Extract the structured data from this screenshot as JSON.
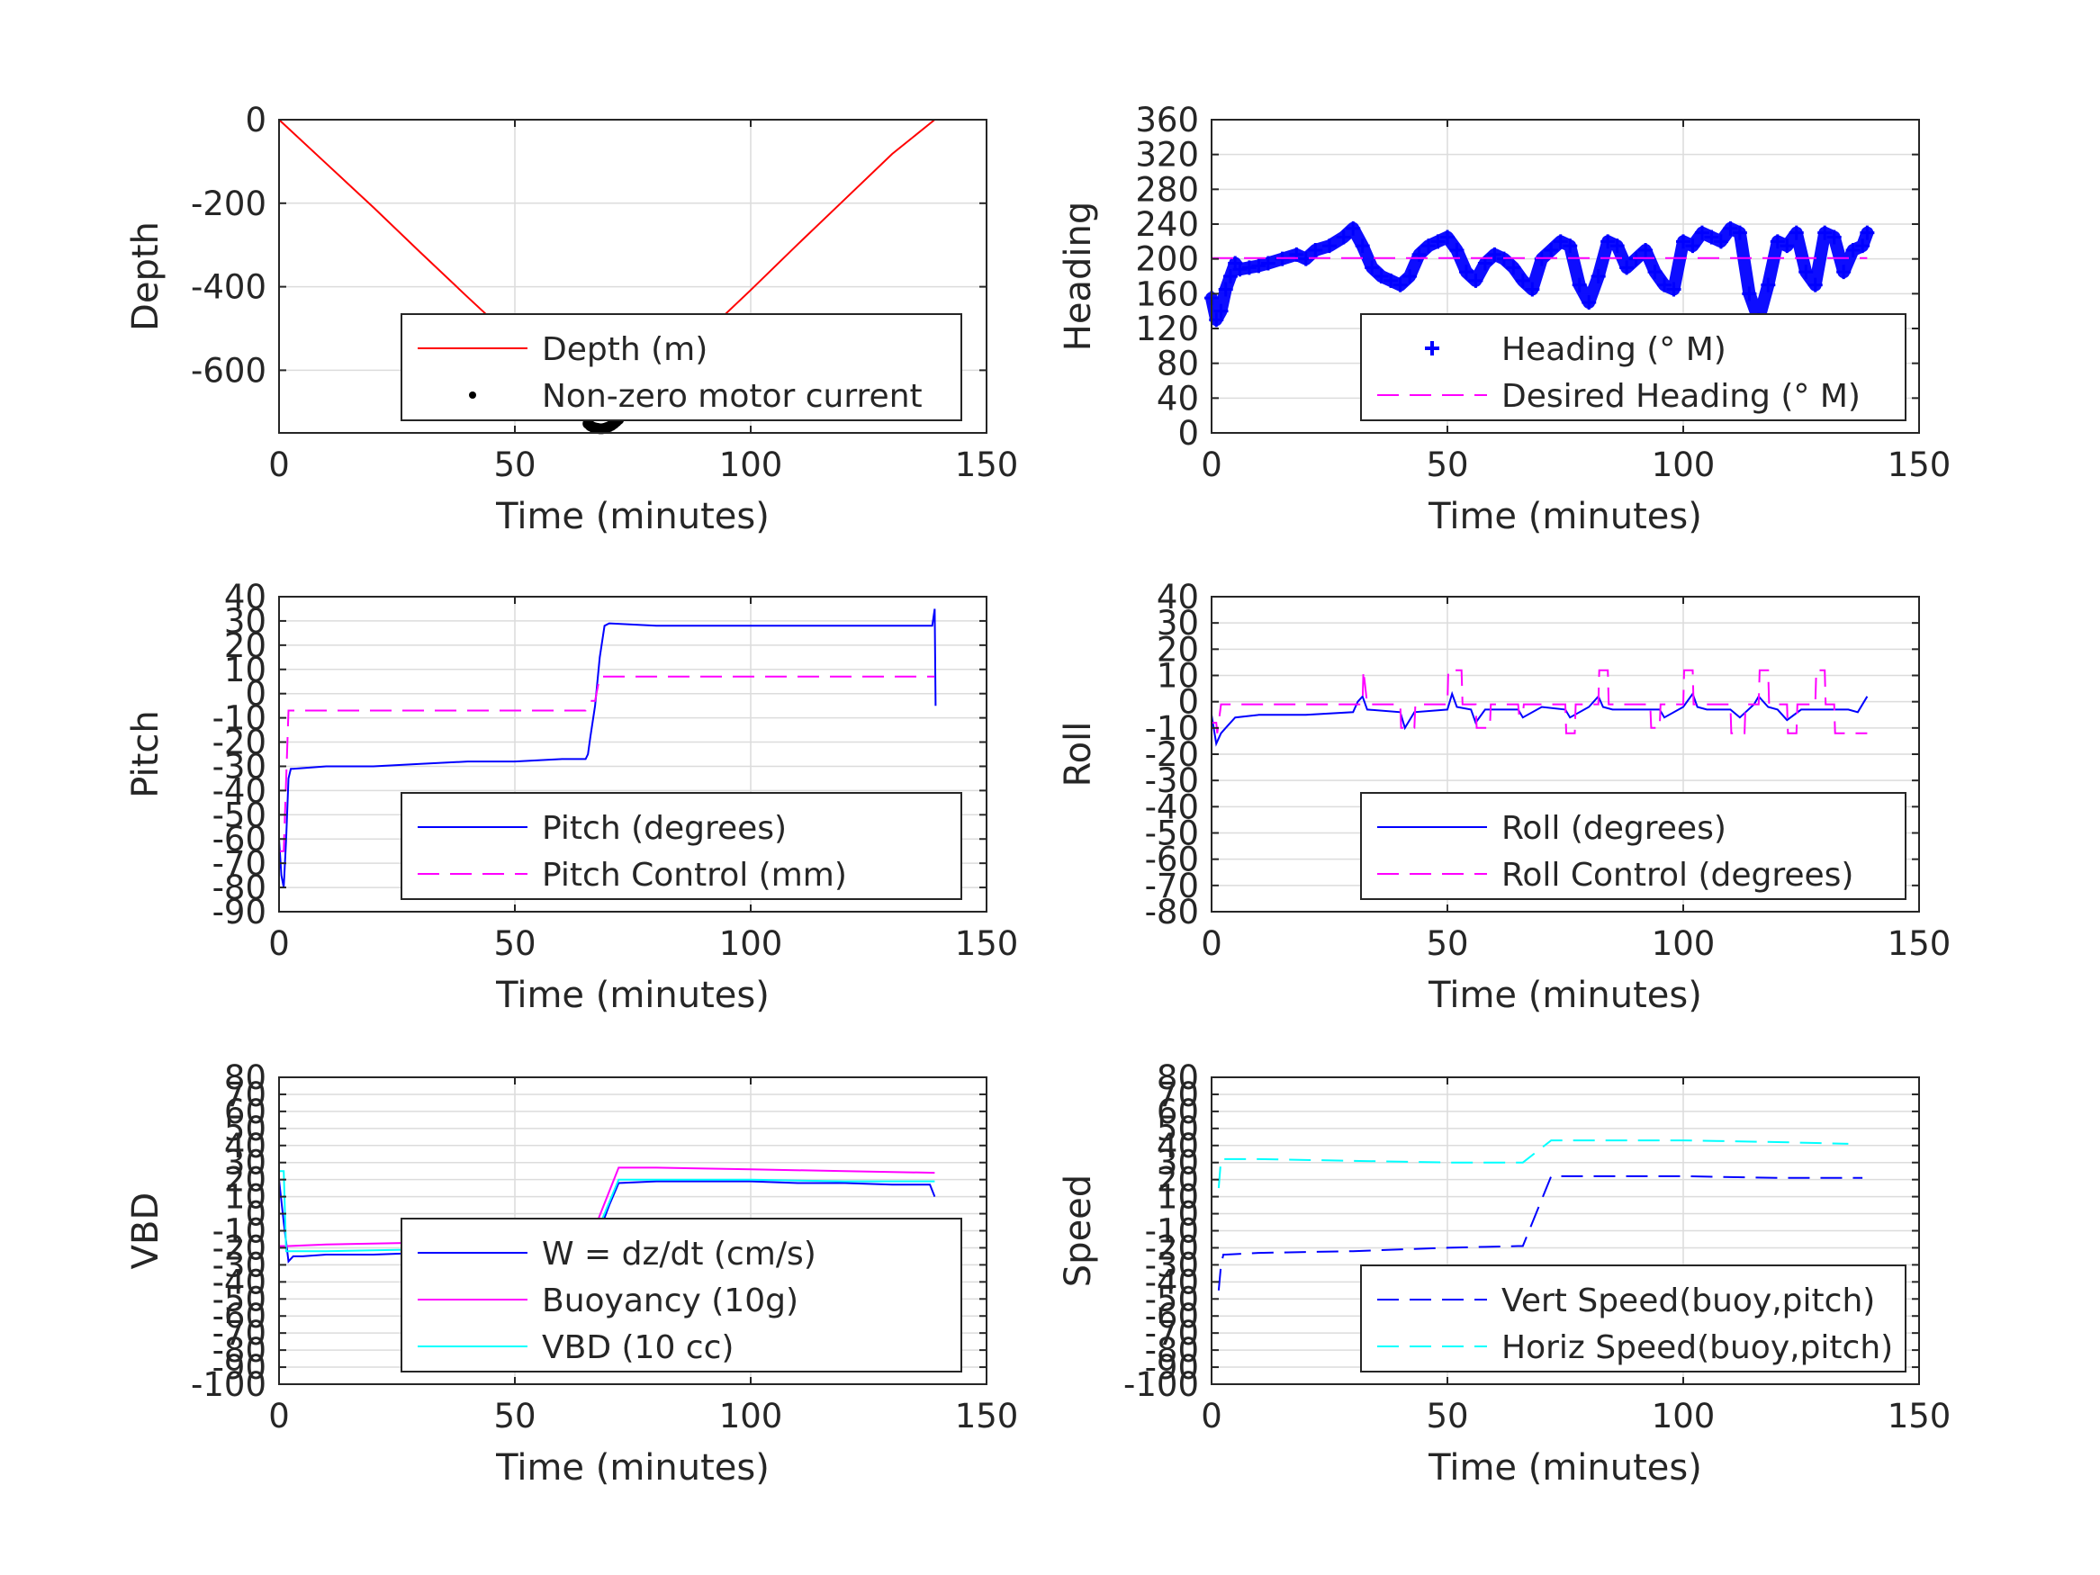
{
  "figure": {
    "background": "#ffffff"
  },
  "chart_data": [
    {
      "id": "depth",
      "type": "line",
      "xlabel": "Time (minutes)",
      "ylabel": "Depth",
      "xlim": [
        0,
        150
      ],
      "ylim": [
        -750,
        0
      ],
      "xticks": [
        0,
        50,
        100,
        150
      ],
      "yticks": [
        0,
        -200,
        -400,
        -600
      ],
      "grid": true,
      "legend": {
        "placement": "bottom-right"
      },
      "series": [
        {
          "name": "Depth (m)",
          "color": "#ff0000",
          "style": "solid",
          "x": [
            0,
            10,
            20,
            30,
            40,
            50,
            60,
            67,
            68,
            70,
            80,
            90,
            100,
            110,
            120,
            130,
            139
          ],
          "y": [
            0,
            -105,
            -210,
            -318,
            -425,
            -530,
            -638,
            -735,
            -738,
            -730,
            -620,
            -515,
            -408,
            -298,
            -190,
            -82,
            0
          ]
        },
        {
          "name": "Non-zero motor current",
          "color": "#000000",
          "style": "dots",
          "x": [
            65.5,
            66,
            66.5,
            67,
            67.5,
            68,
            68.5,
            69,
            69.5,
            70,
            70.5,
            71,
            71.5,
            72
          ],
          "y": [
            -728,
            -733,
            -736,
            -738,
            -739,
            -740,
            -740,
            -739,
            -737,
            -735,
            -732,
            -728,
            -723,
            -718
          ]
        }
      ]
    },
    {
      "id": "heading",
      "type": "scatter",
      "xlabel": "Time (minutes)",
      "ylabel": "Heading",
      "xlim": [
        0,
        150
      ],
      "ylim": [
        0,
        360
      ],
      "xticks": [
        0,
        50,
        100,
        150
      ],
      "yticks": [
        0,
        40,
        80,
        120,
        160,
        200,
        240,
        280,
        320,
        360
      ],
      "grid": true,
      "legend": {
        "placement": "bottom-right"
      },
      "series": [
        {
          "name": "Heading (° M)",
          "color": "#0000ff",
          "style": "plus",
          "x": [
            0,
            1,
            2,
            3,
            4,
            5,
            6,
            8,
            10,
            12,
            15,
            18,
            20,
            22,
            25,
            28,
            30,
            32,
            34,
            36,
            38,
            40,
            42,
            44,
            46,
            48,
            50,
            52,
            54,
            56,
            58,
            60,
            62,
            64,
            66,
            68,
            70,
            72,
            74,
            76,
            78,
            80,
            82,
            84,
            86,
            88,
            90,
            92,
            94,
            96,
            98,
            100,
            102,
            104,
            106,
            108,
            110,
            112,
            114,
            116,
            118,
            120,
            122,
            124,
            126,
            128,
            130,
            132,
            134,
            136,
            138,
            139
          ],
          "y": [
            155,
            130,
            140,
            165,
            180,
            195,
            188,
            190,
            192,
            195,
            200,
            205,
            200,
            210,
            215,
            225,
            235,
            215,
            190,
            180,
            175,
            170,
            180,
            205,
            215,
            220,
            225,
            210,
            185,
            175,
            195,
            205,
            200,
            190,
            175,
            165,
            200,
            210,
            220,
            215,
            170,
            150,
            180,
            220,
            215,
            190,
            200,
            210,
            185,
            170,
            165,
            220,
            215,
            230,
            225,
            220,
            235,
            230,
            160,
            130,
            170,
            220,
            215,
            230,
            185,
            170,
            230,
            225,
            185,
            210,
            215,
            230
          ]
        },
        {
          "name": "Desired Heading (° M)",
          "color": "#ff00ff",
          "style": "dashed",
          "x": [
            0,
            139
          ],
          "y": [
            201,
            201
          ]
        }
      ]
    },
    {
      "id": "pitch",
      "type": "line",
      "xlabel": "Time (minutes)",
      "ylabel": "Pitch",
      "xlim": [
        0,
        150
      ],
      "ylim": [
        -90,
        40
      ],
      "xticks": [
        0,
        50,
        100,
        150
      ],
      "yticks": [
        40,
        30,
        20,
        10,
        0,
        -10,
        -20,
        -30,
        -40,
        -50,
        -60,
        -70,
        -80,
        -90
      ],
      "grid": true,
      "legend": {
        "placement": "bottom-right"
      },
      "series": [
        {
          "name": "Pitch (degrees)",
          "color": "#0000ff",
          "style": "solid",
          "x": [
            0,
            0.5,
            1,
            1.5,
            2,
            2.5,
            3,
            10,
            20,
            30,
            40,
            50,
            60,
            65,
            65.5,
            66,
            67,
            68,
            69,
            70,
            80,
            90,
            100,
            110,
            120,
            130,
            138.5,
            139,
            139.2
          ],
          "y": [
            -60,
            -75,
            -80,
            -60,
            -35,
            -31,
            -31,
            -30,
            -30,
            -29,
            -28,
            -28,
            -27,
            -27,
            -25,
            -18,
            -5,
            15,
            28,
            29,
            28,
            28,
            28,
            28,
            28,
            28,
            28,
            35,
            -5
          ]
        },
        {
          "name": "Pitch Control (mm)",
          "color": "#ff00ff",
          "style": "dashed",
          "x": [
            0,
            1,
            2,
            3,
            65,
            66,
            67,
            68,
            69,
            70,
            100,
            139
          ],
          "y": [
            -65,
            -65,
            -7,
            -7,
            -7,
            -3,
            -3,
            7,
            7,
            7,
            7,
            7
          ]
        }
      ]
    },
    {
      "id": "roll",
      "type": "line",
      "xlabel": "Time (minutes)",
      "ylabel": "Roll",
      "xlim": [
        0,
        150
      ],
      "ylim": [
        -80,
        40
      ],
      "xticks": [
        0,
        50,
        100,
        150
      ],
      "yticks": [
        40,
        30,
        20,
        10,
        0,
        -10,
        -20,
        -30,
        -40,
        -50,
        -60,
        -70,
        -80
      ],
      "grid": true,
      "legend": {
        "placement": "bottom-right"
      },
      "series": [
        {
          "name": "Roll (degrees)",
          "color": "#0000ff",
          "style": "solid",
          "x": [
            0,
            1,
            2,
            3,
            5,
            10,
            20,
            30,
            31,
            32,
            33,
            40,
            41,
            43,
            50,
            51,
            52,
            55,
            56,
            58,
            65,
            66,
            70,
            75,
            76,
            80,
            82,
            83,
            85,
            90,
            95,
            96,
            100,
            102,
            103,
            105,
            110,
            112,
            115,
            116,
            118,
            120,
            122,
            125,
            130,
            135,
            137,
            139
          ],
          "y": [
            -5,
            -16,
            -12,
            -10,
            -6,
            -5,
            -5,
            -4,
            0,
            2,
            -3,
            -4,
            -10,
            -4,
            -3,
            3,
            -2,
            -3,
            -8,
            -3,
            -3,
            -6,
            -2,
            -3,
            -6,
            -2,
            2,
            -2,
            -3,
            -3,
            -3,
            -6,
            -2,
            3,
            -2,
            -3,
            -3,
            -6,
            -1,
            2,
            -2,
            -3,
            -7,
            -3,
            -3,
            -3,
            -4,
            2
          ]
        },
        {
          "name": "Roll Control (degrees)",
          "color": "#ff00ff",
          "style": "dashed",
          "x": [
            0,
            1,
            1.2,
            2,
            30,
            32,
            32.2,
            33,
            40,
            40.2,
            43,
            43.2,
            50,
            50.2,
            53,
            53.2,
            56,
            56.2,
            59,
            59.2,
            65,
            65.2,
            66,
            66.2,
            75,
            75.2,
            77,
            77.2,
            82,
            82.2,
            84,
            84.2,
            93,
            93.2,
            95,
            95.2,
            100,
            100.2,
            102,
            102.2,
            110,
            110.2,
            113,
            113.2,
            116,
            116.2,
            118,
            118.2,
            122,
            122.2,
            124,
            124.2,
            128,
            128.2,
            130,
            130.2,
            132,
            132.2,
            139
          ],
          "y": [
            -8,
            -8,
            -12,
            -1,
            -1,
            -1,
            12,
            -1,
            -1,
            -10,
            -10,
            -1,
            -1,
            12,
            12,
            -1,
            -1,
            -10,
            -10,
            -1,
            -1,
            -5,
            -5,
            -1,
            -1,
            -12,
            -12,
            -1,
            -1,
            12,
            12,
            -1,
            -1,
            -10,
            -10,
            -1,
            -1,
            12,
            12,
            -1,
            -1,
            -12,
            -12,
            -1,
            -1,
            12,
            12,
            -1,
            -1,
            -12,
            -12,
            -1,
            -1,
            12,
            12,
            -1,
            -1,
            -12,
            -12
          ]
        }
      ]
    },
    {
      "id": "vbd",
      "type": "line",
      "xlabel": "Time (minutes)",
      "ylabel": "VBD",
      "xlim": [
        0,
        150
      ],
      "ylim": [
        -100,
        80
      ],
      "xticks": [
        0,
        50,
        100,
        150
      ],
      "yticks": [
        80,
        70,
        60,
        50,
        40,
        30,
        20,
        10,
        0,
        -10,
        -20,
        -30,
        -40,
        -50,
        -60,
        -70,
        -80,
        -90,
        -100
      ],
      "grid": true,
      "legend": {
        "placement": "bottom-right"
      },
      "series": [
        {
          "name": "W = dz/dt (cm/s)",
          "color": "#0000ff",
          "style": "solid",
          "x": [
            0,
            1,
            2,
            3,
            5,
            10,
            20,
            30,
            40,
            50,
            60,
            65,
            66,
            68,
            70,
            72,
            80,
            90,
            100,
            110,
            120,
            130,
            138,
            139
          ],
          "y": [
            20,
            -5,
            -28,
            -25,
            -25,
            -24,
            -24,
            -23,
            -22,
            -22,
            -22,
            -21,
            -20,
            -10,
            5,
            18,
            19,
            19,
            19,
            18,
            18,
            17,
            17,
            10
          ]
        },
        {
          "name": "Buoyancy (10g)",
          "color": "#ff00ff",
          "style": "solid",
          "x": [
            0,
            1,
            1.5,
            2,
            10,
            30,
            50,
            65,
            66,
            72,
            80,
            100,
            120,
            139
          ],
          "y": [
            -19,
            -19,
            -19,
            -19,
            -18,
            -17,
            -16,
            -15,
            -15,
            27,
            27,
            26,
            25,
            24
          ]
        },
        {
          "name": "VBD (10 cc)",
          "color": "#00ffff",
          "style": "solid",
          "x": [
            0,
            1,
            1.5,
            2,
            10,
            30,
            50,
            65,
            66,
            72,
            80,
            100,
            120,
            139
          ],
          "y": [
            25,
            25,
            -22,
            -22,
            -22,
            -21,
            -21,
            -20,
            -20,
            20,
            20,
            20,
            19,
            19
          ]
        }
      ]
    },
    {
      "id": "speed",
      "type": "line",
      "xlabel": "Time (minutes)",
      "ylabel": "Speed",
      "xlim": [
        0,
        150
      ],
      "ylim": [
        -100,
        80
      ],
      "xticks": [
        0,
        50,
        100,
        150
      ],
      "yticks": [
        80,
        70,
        60,
        50,
        40,
        30,
        20,
        10,
        0,
        -10,
        -20,
        -30,
        -40,
        -50,
        -60,
        -70,
        -80,
        -90,
        -100
      ],
      "grid": true,
      "legend": {
        "placement": "bottom-right"
      },
      "series": [
        {
          "name": "Vert Speed(buoy,pitch)",
          "color": "#0000ff",
          "style": "dashed",
          "x": [
            1.5,
            2,
            2.5,
            3,
            10,
            30,
            50,
            65,
            66,
            72,
            80,
            100,
            120,
            138
          ],
          "y": [
            -45,
            -30,
            -24,
            -24,
            -23,
            -22,
            -20,
            -19,
            -19,
            22,
            22,
            22,
            21,
            21
          ]
        },
        {
          "name": "Horiz Speed(buoy,pitch)",
          "color": "#00ffff",
          "style": "dashed",
          "x": [
            1.5,
            2,
            3,
            10,
            30,
            50,
            65,
            66,
            72,
            80,
            100,
            120,
            135
          ],
          "y": [
            15,
            32,
            32,
            32,
            31,
            30,
            30,
            30,
            43,
            43,
            43,
            42,
            41
          ]
        }
      ]
    }
  ]
}
